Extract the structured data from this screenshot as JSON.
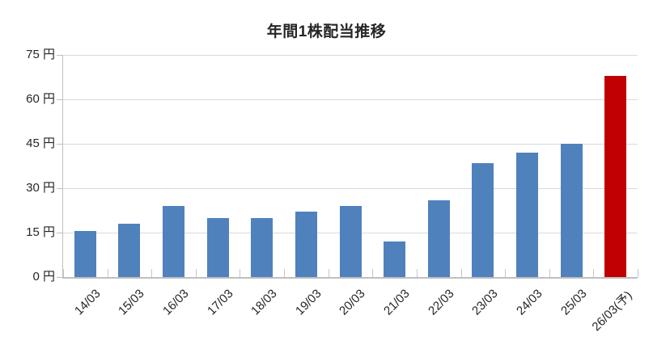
{
  "title": "年間1株配当推移",
  "chart_data": {
    "type": "bar",
    "title": "年間1株配当推移",
    "series_name": "年間1株配当",
    "unit": "円",
    "categories": [
      "14/03",
      "15/03",
      "16/03",
      "17/03",
      "18/03",
      "19/03",
      "20/03",
      "21/03",
      "22/03",
      "23/03",
      "24/03",
      "25/03",
      "26/03(予)"
    ],
    "values": [
      15.5,
      18,
      24,
      20,
      20,
      22,
      24,
      12,
      26,
      38.5,
      42,
      45,
      68
    ],
    "forecast_index": 12,
    "xlabel": "",
    "ylabel": "",
    "ylim": [
      0,
      75
    ],
    "ytick_step": 15,
    "ytick_labels": [
      "0 円",
      "15 円",
      "30 円",
      "45 円",
      "60 円",
      "75 円"
    ],
    "grid": true,
    "legend_position": "none",
    "colors": {
      "bar": "#4F81BD",
      "forecast_bar": "#C00000",
      "gridline": "#D9D9D9",
      "axis": "#BFBFBF",
      "tick": "#C6C6C6",
      "text": "#262626"
    }
  }
}
